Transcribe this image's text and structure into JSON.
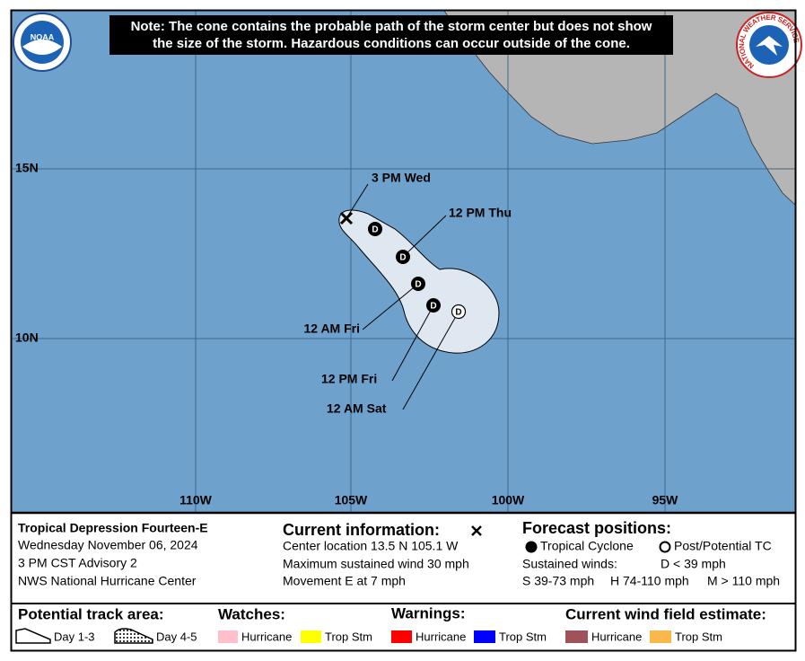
{
  "header": {
    "note_lines": [
      "Note: The cone contains the probable path of the storm center but does not show",
      "the size of the storm. Hazardous conditions can occur outside of the cone."
    ],
    "noaa_logo": "NOAA",
    "nws_logo": "NATIONAL WEATHER SERVICE"
  },
  "map": {
    "lat_labels": [
      "15N",
      "10N"
    ],
    "lon_labels": [
      "110W",
      "105W",
      "100W",
      "95W"
    ],
    "track_labels": [
      "3 PM Wed",
      "12 PM Thu",
      "12 AM Fri",
      "12 PM Fri",
      "12 AM Sat"
    ],
    "forecast_symbols": [
      "D",
      "D",
      "D",
      "D",
      "D"
    ]
  },
  "storm": {
    "title": "Tropical Depression Fourteen-E",
    "date": "Wednesday November 06, 2024",
    "advisory": "3 PM CST Advisory 2",
    "source": "NWS National Hurricane Center"
  },
  "current": {
    "heading": "Current information:",
    "lines": [
      "Center location 13.5 N 105.1 W",
      "Maximum sustained wind 30 mph",
      "Movement E at 7 mph"
    ]
  },
  "forecast": {
    "heading": "Forecast positions:",
    "tropical_cyclone": "Tropical Cyclone",
    "post_tc": "Post/Potential TC",
    "sustained": "Sustained winds:",
    "d": "D < 39 mph",
    "s": "S 39-73 mph",
    "h": "H 74-110 mph",
    "m": "M > 110 mph"
  },
  "legend": {
    "track_heading": "Potential track area:",
    "day13": "Day 1-3",
    "day45": "Day 4-5",
    "watches_heading": "Watches:",
    "watch_hurricane": "Hurricane",
    "watch_tropstm": "Trop Stm",
    "warnings_heading": "Warnings:",
    "warn_hurricane": "Hurricane",
    "warn_tropstm": "Trop Stm",
    "wind_heading": "Current wind field estimate:",
    "wind_hurricane": "Hurricane",
    "wind_tropstm": "Trop Stm"
  }
}
